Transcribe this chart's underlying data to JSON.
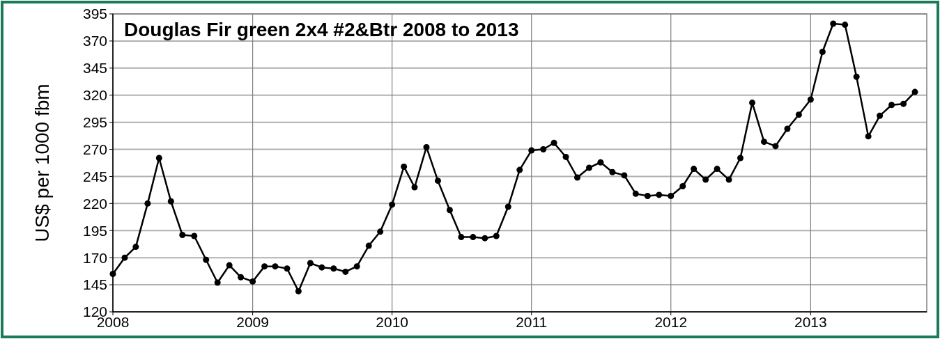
{
  "chart_data": {
    "type": "line",
    "title": "Douglas Fir green 2x4 #2&Btr 2008 to 2013",
    "ylabel": "US$ per 1000 fbm",
    "x": [
      "2008-01",
      "2008-02",
      "2008-03",
      "2008-04",
      "2008-05",
      "2008-06",
      "2008-07",
      "2008-08",
      "2008-09",
      "2008-10",
      "2008-11",
      "2008-12",
      "2009-01",
      "2009-02",
      "2009-03",
      "2009-04",
      "2009-05",
      "2009-06",
      "2009-07",
      "2009-08",
      "2009-09",
      "2009-10",
      "2009-11",
      "2009-12",
      "2010-01",
      "2010-02",
      "2010-03",
      "2010-04",
      "2010-05",
      "2010-06",
      "2010-07",
      "2010-08",
      "2010-09",
      "2010-10",
      "2010-11",
      "2010-12",
      "2011-01",
      "2011-02",
      "2011-03",
      "2011-04",
      "2011-05",
      "2011-06",
      "2011-07",
      "2011-08",
      "2011-09",
      "2011-10",
      "2011-11",
      "2011-12",
      "2012-01",
      "2012-02",
      "2012-03",
      "2012-04",
      "2012-05",
      "2012-06",
      "2012-07",
      "2012-08",
      "2012-09",
      "2012-10",
      "2012-11",
      "2012-12",
      "2013-01",
      "2013-02",
      "2013-03",
      "2013-04",
      "2013-05",
      "2013-06",
      "2013-07",
      "2013-08",
      "2013-09",
      "2013-10"
    ],
    "series": [
      {
        "color": "#000000",
        "values": [
          155,
          170,
          180,
          220,
          262,
          222,
          191,
          190,
          168,
          147,
          163,
          152,
          148,
          162,
          162,
          160,
          139,
          165,
          161,
          160,
          157,
          162,
          181,
          194,
          219,
          254,
          235,
          272,
          241,
          214,
          189,
          189,
          188,
          190,
          217,
          251,
          269,
          270,
          276,
          263,
          244,
          253,
          258,
          249,
          246,
          229,
          227,
          228,
          227,
          236,
          252,
          242,
          252,
          242,
          262,
          313,
          277,
          273,
          289,
          302,
          316,
          360,
          386,
          385,
          337,
          282,
          301,
          311,
          312,
          323
        ]
      }
    ],
    "xlim": [
      "2008-01",
      "2013-11"
    ],
    "xticks": [
      {
        "value": "2008",
        "label": "2008"
      },
      {
        "value": "2009",
        "label": "2009"
      },
      {
        "value": "2010",
        "label": "2010"
      },
      {
        "value": "2011",
        "label": "2011"
      },
      {
        "value": "2012",
        "label": "2012"
      },
      {
        "value": "2013",
        "label": "2013"
      }
    ],
    "ylim": [
      120,
      395
    ],
    "yticks": [
      120,
      145,
      170,
      195,
      220,
      245,
      270,
      295,
      320,
      345,
      370,
      395
    ],
    "grid": true,
    "marker": "circle",
    "line_style": "solid"
  }
}
